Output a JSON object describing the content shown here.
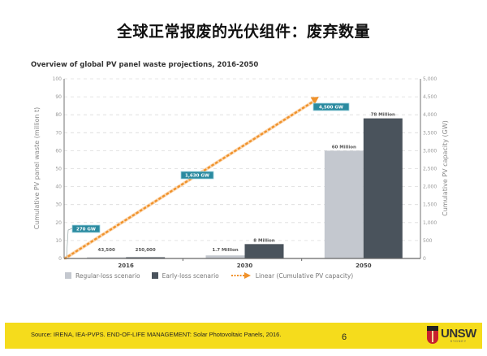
{
  "slide": {
    "title": "全球正常报废的光伏组件：废弃数量"
  },
  "chart_data": {
    "type": "bar",
    "title": "Overview of global PV panel waste projections, 2016-2050",
    "categories": [
      "2016",
      "2030",
      "2050"
    ],
    "series": [
      {
        "name": "Regular-loss scenario",
        "values": [
          0.0435,
          1.7,
          60
        ],
        "labels": [
          "43,500",
          "1.7 Million",
          "60 Million"
        ],
        "color": "#c4c8cf"
      },
      {
        "name": "Early-loss scenario",
        "values": [
          0.25,
          8,
          78
        ],
        "labels": [
          "250,000",
          "8 Million",
          "78 Million"
        ],
        "color": "#4a535c"
      }
    ],
    "line_series": {
      "name": "Linear (Cumulative PV capacity)",
      "axis": "right",
      "x": [
        "2016",
        "2030",
        "2050"
      ],
      "values": [
        270,
        1630,
        4500
      ],
      "labels": [
        "270 GW",
        "1,630 GW",
        "4,500 GW"
      ],
      "color": "#f0922b",
      "label_color": "#2a8aa0"
    },
    "ylabel": "Cumulative PV panel waste (million t)",
    "ylim": [
      0,
      100
    ],
    "yticks": [
      "0",
      "10",
      "20",
      "30",
      "40",
      "50",
      "60",
      "70",
      "80",
      "90",
      "100"
    ],
    "y2label": "Cumulative PV capacity (GW)",
    "y2lim": [
      0,
      5000
    ],
    "y2ticks": [
      "0",
      "500",
      "1,000",
      "1,500",
      "2,000",
      "2,500",
      "3,000",
      "3,500",
      "4,000",
      "4,500",
      "5,000"
    ],
    "grid": true,
    "legend": "bottom"
  },
  "footer": {
    "source": "Source: IRENA, IEA-PVPS. END-OF-LIFE MANAGEMENT: Solar Photovoltaic Panels, 2016.",
    "page_number": "6",
    "logo_text": "UNSW",
    "logo_subtext": "SYDNEY"
  }
}
